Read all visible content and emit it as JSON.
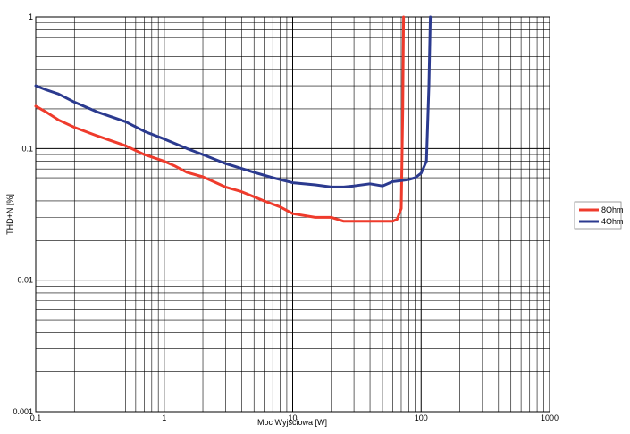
{
  "chart_data": {
    "type": "line",
    "title": "",
    "xlabel": "Moc Wyjściowa [W]",
    "ylabel": "THD+N [%]",
    "x_scale": "log",
    "y_scale": "log",
    "xlim": [
      0.1,
      1000
    ],
    "ylim": [
      0.001,
      1
    ],
    "grid": true,
    "legend_position": "right",
    "x_ticks": [
      "0.1",
      "1",
      "10",
      "100",
      "1000"
    ],
    "y_ticks": [
      "0.001",
      "0.01",
      "0.1",
      "1"
    ],
    "series": [
      {
        "name": "8Ohm",
        "color": "#ef3b2c",
        "x": [
          0.1,
          0.12,
          0.15,
          0.2,
          0.3,
          0.5,
          0.7,
          1,
          1.2,
          1.5,
          2,
          3,
          4,
          5,
          6,
          8,
          10,
          15,
          20,
          25,
          30,
          40,
          50,
          60,
          65,
          70,
          72,
          73
        ],
        "y": [
          0.21,
          0.19,
          0.165,
          0.145,
          0.125,
          0.105,
          0.09,
          0.08,
          0.074,
          0.066,
          0.061,
          0.051,
          0.047,
          0.043,
          0.04,
          0.036,
          0.032,
          0.03,
          0.03,
          0.028,
          0.028,
          0.028,
          0.028,
          0.028,
          0.029,
          0.035,
          0.2,
          1.0
        ]
      },
      {
        "name": "4Ohm",
        "color": "#2b3a8f",
        "x": [
          0.1,
          0.12,
          0.15,
          0.2,
          0.3,
          0.5,
          0.7,
          1,
          1.5,
          2,
          3,
          5,
          7,
          10,
          15,
          20,
          25,
          30,
          40,
          50,
          60,
          70,
          80,
          90,
          100,
          110,
          115,
          118
        ],
        "y": [
          0.3,
          0.28,
          0.26,
          0.225,
          0.19,
          0.16,
          0.135,
          0.118,
          0.1,
          0.09,
          0.077,
          0.066,
          0.06,
          0.055,
          0.053,
          0.051,
          0.051,
          0.052,
          0.054,
          0.052,
          0.056,
          0.057,
          0.058,
          0.06,
          0.065,
          0.08,
          0.3,
          1.0
        ]
      }
    ]
  }
}
